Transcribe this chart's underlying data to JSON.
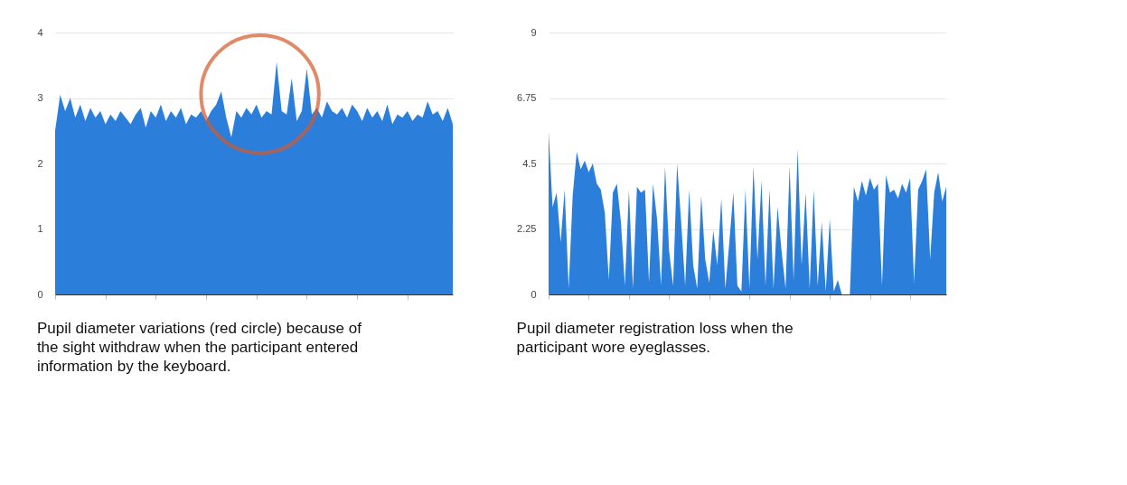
{
  "chart_data": [
    {
      "type": "area",
      "categories": [
        null,
        null,
        null,
        null,
        null,
        null,
        null,
        null,
        null,
        null,
        null,
        null,
        null,
        null,
        null,
        null,
        null,
        null,
        null,
        null,
        null,
        null,
        null,
        null,
        null,
        null,
        null,
        null,
        null,
        null,
        null,
        null,
        null,
        null,
        null,
        null,
        null,
        null,
        null,
        null,
        null,
        null,
        null,
        null,
        null,
        null,
        null,
        null,
        null,
        null,
        null,
        null,
        null,
        null,
        null,
        null,
        null,
        null,
        null,
        null,
        null,
        null,
        null,
        null,
        null,
        null,
        null,
        null,
        null,
        null,
        null,
        null,
        null,
        null,
        null,
        null,
        null,
        null,
        null,
        null
      ],
      "values": [
        2.5,
        3.05,
        2.8,
        3.0,
        2.7,
        2.9,
        2.65,
        2.85,
        2.7,
        2.8,
        2.6,
        2.75,
        2.65,
        2.8,
        2.7,
        2.6,
        2.75,
        2.85,
        2.55,
        2.8,
        2.7,
        2.9,
        2.65,
        2.8,
        2.7,
        2.85,
        2.6,
        2.75,
        2.7,
        2.8,
        2.65,
        2.8,
        2.9,
        3.1,
        2.7,
        2.4,
        2.8,
        2.7,
        2.85,
        2.75,
        2.9,
        2.7,
        2.8,
        2.75,
        3.55,
        2.8,
        2.75,
        3.3,
        2.65,
        2.8,
        3.45,
        2.75,
        2.85,
        2.7,
        2.95,
        2.8,
        2.75,
        2.85,
        2.7,
        2.9,
        2.8,
        2.65,
        2.85,
        2.7,
        2.8,
        2.65,
        2.9,
        2.6,
        2.75,
        2.7,
        2.8,
        2.65,
        2.75,
        2.7,
        2.95,
        2.75,
        2.8,
        2.65,
        2.85,
        2.6
      ],
      "color": "#2b7fdb",
      "ylim": [
        0,
        4
      ],
      "yticks": [
        0,
        1,
        2,
        3,
        4
      ],
      "grid": "y",
      "tick_labels": "y",
      "annotations": [
        "Pupil diameter variations (red circle) because of the sight withdraw when the participant entered information by the keyboard."
      ]
    },
    {
      "type": "area",
      "categories": [
        null,
        null,
        null,
        null,
        null,
        null,
        null,
        null,
        null,
        null,
        null,
        null,
        null,
        null,
        null,
        null,
        null,
        null,
        null,
        null,
        null,
        null,
        null,
        null,
        null,
        null,
        null,
        null,
        null,
        null,
        null,
        null,
        null,
        null,
        null,
        null,
        null,
        null,
        null,
        null,
        null,
        null,
        null,
        null,
        null,
        null,
        null,
        null,
        null,
        null,
        null,
        null,
        null,
        null,
        null,
        null,
        null,
        null,
        null,
        null,
        null,
        null,
        null,
        null,
        null,
        null,
        null,
        null,
        null,
        null,
        null,
        null,
        null,
        null,
        null,
        null,
        null,
        null,
        null,
        null,
        null,
        null,
        null,
        null,
        null,
        null,
        null,
        null,
        null,
        null,
        null,
        null,
        null,
        null,
        null,
        null,
        null,
        null,
        null,
        null
      ],
      "values": [
        5.6,
        3.0,
        3.5,
        1.8,
        3.6,
        0.2,
        3.4,
        4.9,
        4.3,
        4.6,
        4.2,
        4.5,
        3.8,
        3.6,
        2.8,
        0.5,
        3.5,
        3.8,
        2.5,
        0.3,
        3.6,
        0.2,
        3.7,
        3.5,
        3.6,
        0.4,
        3.8,
        2.6,
        0.3,
        4.4,
        1.5,
        0.3,
        4.5,
        2.5,
        0.3,
        3.6,
        1.0,
        0.2,
        3.4,
        1.2,
        0.4,
        2.2,
        1.0,
        3.3,
        0.2,
        1.8,
        3.5,
        0.3,
        0.1,
        3.6,
        0.2,
        4.4,
        1.2,
        3.9,
        0.3,
        3.6,
        0.2,
        3.0,
        1.5,
        0.2,
        4.4,
        0.5,
        5.0,
        1.0,
        3.5,
        0.2,
        3.6,
        0.3,
        2.5,
        0.1,
        2.6,
        0.1,
        0.5,
        0.0,
        0.0,
        0.0,
        3.7,
        3.2,
        3.9,
        3.4,
        4.0,
        3.6,
        3.8,
        0.3,
        4.1,
        3.5,
        3.6,
        3.3,
        3.8,
        3.5,
        4.0,
        0.4,
        3.6,
        3.9,
        4.3,
        1.2,
        3.5,
        4.2,
        3.2,
        3.7
      ],
      "color": "#2b7fdb",
      "ylim": [
        0,
        9
      ],
      "yticks": [
        0,
        2.25,
        4.5,
        6.75,
        9
      ],
      "grid": "y",
      "tick_labels": "y",
      "annotations": [
        "Pupil diameter registration loss when the participant wore eyeglasses."
      ]
    }
  ]
}
